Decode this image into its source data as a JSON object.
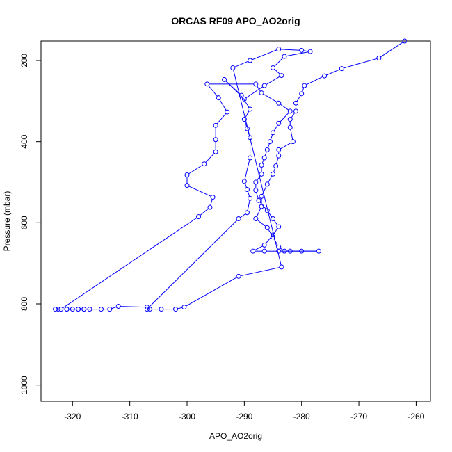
{
  "chart_data": {
    "type": "scatter",
    "title": "ORCAS RF09 APO_AO2orig",
    "xlabel": "APO_AO2orig",
    "ylabel": "Pressure (mbar)",
    "xlim": [
      -325.5,
      -257.5
    ],
    "ylim": [
      1040,
      152
    ],
    "y_reversed": true,
    "x_ticks": [
      -320,
      -310,
      -300,
      -290,
      -280,
      -270,
      -260
    ],
    "y_ticks": [
      200,
      400,
      600,
      800,
      1000
    ],
    "color": "#0000ff",
    "marker": "open-circle",
    "connect": true,
    "series": [
      {
        "points": [
          [
            -262,
            152
          ],
          [
            -266.5,
            194
          ],
          [
            -273,
            220
          ],
          [
            -276,
            238
          ],
          [
            -279.5,
            262
          ],
          [
            -280,
            282
          ],
          [
            -281,
            305
          ],
          [
            -281,
            325
          ],
          [
            -282,
            345
          ],
          [
            -282,
            365
          ],
          [
            -281.5,
            400
          ],
          [
            -284,
            420
          ],
          [
            -284,
            435
          ],
          [
            -284.5,
            460
          ],
          [
            -285,
            480
          ],
          [
            -286,
            505
          ],
          [
            -287,
            535
          ],
          [
            -287,
            560
          ],
          [
            -288,
            590
          ],
          [
            -286,
            612
          ],
          [
            -285,
            635
          ],
          [
            -284,
            660
          ],
          [
            -283,
            670
          ],
          [
            -277,
            670
          ],
          [
            -280,
            670
          ],
          [
            -282,
            670
          ],
          [
            -284,
            670
          ],
          [
            -286.5,
            670
          ],
          [
            -288.5,
            670
          ],
          [
            -286.5,
            655
          ],
          [
            -285,
            630
          ],
          [
            -284,
            610
          ],
          [
            -285,
            590
          ],
          [
            -286,
            570
          ],
          [
            -287.5,
            545
          ],
          [
            -288,
            520
          ],
          [
            -288,
            500
          ],
          [
            -287,
            480
          ],
          [
            -287,
            458
          ],
          [
            -286.5,
            440
          ],
          [
            -286,
            420
          ],
          [
            -285.5,
            400
          ],
          [
            -285,
            378
          ],
          [
            -284,
            355
          ],
          [
            -282,
            325
          ],
          [
            -284,
            305
          ],
          [
            -287,
            280
          ],
          [
            -288,
            258
          ],
          [
            -296.5,
            258
          ],
          [
            -294.5,
            292
          ],
          [
            -293,
            327
          ],
          [
            -295,
            360
          ],
          [
            -295,
            395
          ],
          [
            -295,
            425
          ],
          [
            -297,
            455
          ],
          [
            -300,
            482
          ],
          [
            -300,
            508
          ],
          [
            -295.5,
            537
          ],
          [
            -296,
            562
          ],
          [
            -298,
            585
          ],
          [
            -322,
            813
          ],
          [
            -323,
            813
          ],
          [
            -322.5,
            813
          ],
          [
            -321,
            813
          ],
          [
            -320,
            813
          ],
          [
            -319,
            813
          ],
          [
            -318,
            813
          ],
          [
            -317,
            813
          ],
          [
            -319,
            813
          ],
          [
            -321,
            813
          ],
          [
            -318,
            813
          ],
          [
            -315,
            813
          ],
          [
            -313.5,
            813
          ],
          [
            -312,
            806
          ],
          [
            -307,
            808
          ],
          [
            -306.5,
            813
          ],
          [
            -304.5,
            813
          ],
          [
            -302,
            813
          ],
          [
            -300.5,
            808
          ],
          [
            -291,
            732
          ],
          [
            -283.5,
            709
          ],
          [
            -292,
            218
          ],
          [
            -289,
            200
          ],
          [
            -284,
            172
          ],
          [
            -280,
            175
          ],
          [
            -278.5,
            178
          ],
          [
            -283,
            190
          ],
          [
            -285,
            218
          ],
          [
            -283.5,
            237
          ],
          [
            -286.5,
            262
          ],
          [
            -290,
            295
          ],
          [
            -293.5,
            247
          ],
          [
            -290.5,
            286
          ],
          [
            -289,
            320
          ],
          [
            -290,
            345
          ],
          [
            -289.5,
            368
          ],
          [
            -289,
            390
          ],
          [
            -289,
            440
          ],
          [
            -290,
            498
          ],
          [
            -289.5,
            518
          ],
          [
            -289,
            540
          ],
          [
            -289.5,
            575
          ],
          [
            -291,
            590
          ],
          [
            -307,
            813
          ]
        ]
      }
    ]
  }
}
